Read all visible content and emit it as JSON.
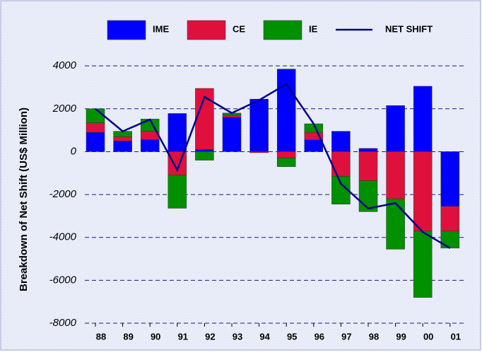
{
  "chart_data": {
    "type": "stacked-bar-line",
    "y_label": "Breakdown of Net Shift (US$ Million)",
    "categories": [
      "88",
      "89",
      "90",
      "91",
      "92",
      "93",
      "94",
      "95",
      "96",
      "97",
      "98",
      "99",
      "00",
      "01"
    ],
    "series": [
      {
        "name": "IME",
        "color": "#0000ff",
        "values": [
          900,
          500,
          560,
          1780,
          100,
          1600,
          2450,
          3850,
          550,
          950,
          150,
          2150,
          3050,
          -2550
        ]
      },
      {
        "name": "CE",
        "color": "#e0103c",
        "values": [
          450,
          200,
          400,
          -1090,
          2850,
          100,
          -50,
          -300,
          350,
          -1150,
          -1350,
          -2200,
          -3700,
          -1150
        ]
      },
      {
        "name": "IE",
        "color": "#009000",
        "values": [
          650,
          250,
          560,
          -1550,
          -400,
          100,
          0,
          -400,
          400,
          -1300,
          -1450,
          -2350,
          -3100,
          -800
        ]
      },
      {
        "name": "NET SHIFT",
        "color": "#00008b",
        "type": "line",
        "values": [
          2000,
          950,
          1500,
          -860,
          2550,
          1800,
          2400,
          3150,
          1300,
          -1500,
          -2650,
          -2400,
          -3750,
          -4500
        ]
      }
    ],
    "ylim": [
      -8000,
      4500
    ],
    "yticks": [
      -8000,
      -6000,
      -4000,
      -2000,
      0,
      2000,
      4000
    ],
    "grid": true
  }
}
